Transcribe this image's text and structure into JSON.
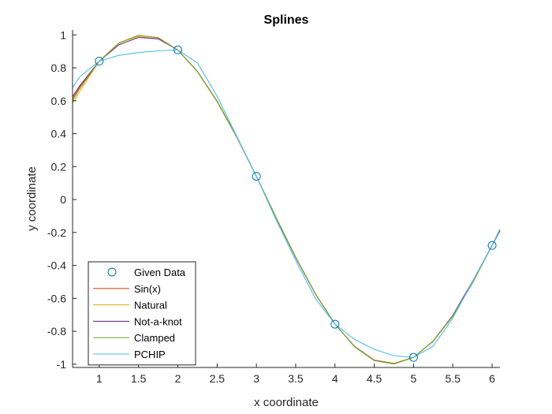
{
  "chart_data": {
    "type": "line",
    "title": "Splines",
    "xlabel": "x coordinate",
    "ylabel": "y coordinate",
    "xlim": [
      0.66,
      6.1
    ],
    "ylim": [
      -1.02,
      1.03
    ],
    "xticks": [
      1,
      1.5,
      2,
      2.5,
      3,
      3.5,
      4,
      4.5,
      5,
      5.5,
      6
    ],
    "xtick_labels": [
      "1",
      "1.5",
      "2",
      "2.5",
      "3",
      "3.5",
      "4",
      "4.5",
      "5",
      "5.5",
      "6"
    ],
    "yticks": [
      -1,
      -0.8,
      -0.6,
      -0.4,
      -0.2,
      0,
      0.2,
      0.4,
      0.6,
      0.8,
      1
    ],
    "ytick_labels": [
      "-1",
      "-0.8",
      "-0.6",
      "-0.4",
      "-0.2",
      "0",
      "0.2",
      "0.4",
      "0.6",
      "0.8",
      "1"
    ],
    "grid": false,
    "legend_position": "bottom-left",
    "given_data": {
      "name": "Given Data",
      "color": "#0072BD",
      "x": [
        1,
        2,
        3,
        4,
        5,
        6
      ],
      "y": [
        0.841,
        0.909,
        0.141,
        -0.757,
        -0.959,
        -0.279
      ]
    },
    "series": [
      {
        "name": "Sin(x)",
        "color": "#D95319",
        "x": [
          0.66,
          0.75,
          1,
          1.25,
          1.5,
          1.75,
          2,
          2.25,
          2.5,
          2.75,
          3,
          3.25,
          3.5,
          3.75,
          4,
          4.25,
          4.5,
          4.75,
          5,
          5.25,
          5.5,
          5.75,
          6,
          6.1
        ],
        "y": [
          0.613,
          0.682,
          0.841,
          0.949,
          0.997,
          0.984,
          0.909,
          0.778,
          0.598,
          0.382,
          0.141,
          -0.108,
          -0.351,
          -0.572,
          -0.757,
          -0.895,
          -0.978,
          -0.999,
          -0.959,
          -0.859,
          -0.706,
          -0.508,
          -0.279,
          -0.182
        ]
      },
      {
        "name": "Natural",
        "color": "#EDB120",
        "x": [
          0.66,
          0.75,
          1,
          1.25,
          1.5,
          1.75,
          2,
          2.25,
          2.5,
          2.75,
          3,
          3.25,
          3.5,
          3.75,
          4,
          4.25,
          4.5,
          4.75,
          5,
          5.25,
          5.5,
          5.75,
          6,
          6.1
        ],
        "y": [
          0.585,
          0.655,
          0.841,
          0.951,
          0.99,
          0.976,
          0.909,
          0.776,
          0.594,
          0.378,
          0.141,
          -0.11,
          -0.352,
          -0.57,
          -0.757,
          -0.892,
          -0.975,
          -0.994,
          -0.959,
          -0.862,
          -0.709,
          -0.505,
          -0.279,
          -0.185
        ]
      },
      {
        "name": "Not-a-knot",
        "color": "#7E2F8E",
        "x": [
          0.66,
          0.75,
          1,
          1.25,
          1.5,
          1.75,
          2,
          2.25,
          2.5,
          2.75,
          3,
          3.25,
          3.5,
          3.75,
          4,
          4.25,
          4.5,
          4.75,
          5,
          5.25,
          5.5,
          5.75,
          6,
          6.1
        ],
        "y": [
          0.625,
          0.69,
          0.841,
          0.94,
          0.985,
          0.976,
          0.909,
          0.777,
          0.596,
          0.38,
          0.141,
          -0.109,
          -0.353,
          -0.573,
          -0.757,
          -0.893,
          -0.976,
          -0.997,
          -0.959,
          -0.86,
          -0.703,
          -0.498,
          -0.279,
          -0.19
        ]
      },
      {
        "name": "Clamped",
        "color": "#77AC30",
        "x": [
          0.66,
          0.75,
          1,
          1.25,
          1.5,
          1.75,
          2,
          2.25,
          2.5,
          2.75,
          3,
          3.25,
          3.5,
          3.75,
          4,
          4.25,
          4.5,
          4.75,
          5,
          5.25,
          5.5,
          5.75,
          6,
          6.1
        ],
        "y": [
          0.6,
          0.673,
          0.841,
          0.952,
          0.998,
          0.982,
          0.909,
          0.776,
          0.597,
          0.381,
          0.141,
          -0.108,
          -0.35,
          -0.572,
          -0.757,
          -0.895,
          -0.978,
          -0.998,
          -0.959,
          -0.86,
          -0.707,
          -0.508,
          -0.279,
          -0.18
        ]
      },
      {
        "name": "PCHIP",
        "color": "#4DBEEE",
        "x": [
          0.66,
          0.75,
          1,
          1.25,
          1.5,
          1.75,
          2,
          2.25,
          2.5,
          2.75,
          3,
          3.25,
          3.5,
          3.75,
          4,
          4.25,
          4.5,
          4.75,
          5,
          5.25,
          5.5,
          5.75,
          6,
          6.1
        ],
        "y": [
          0.68,
          0.745,
          0.841,
          0.876,
          0.893,
          0.903,
          0.909,
          0.83,
          0.628,
          0.385,
          0.141,
          -0.122,
          -0.37,
          -0.6,
          -0.757,
          -0.85,
          -0.91,
          -0.948,
          -0.959,
          -0.89,
          -0.72,
          -0.5,
          -0.279,
          -0.18
        ]
      }
    ]
  }
}
